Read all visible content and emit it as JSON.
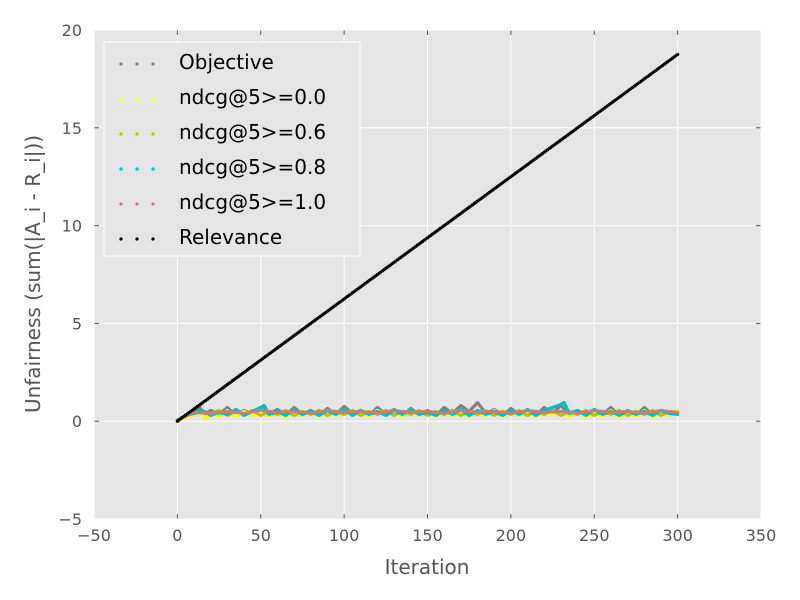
{
  "chart_data": {
    "type": "scatter",
    "title": "",
    "xlabel": "Iteration",
    "ylabel": "Unfairness (sum(|A_i - R_i|))",
    "xlim": [
      -50,
      350
    ],
    "ylim": [
      -5,
      20
    ],
    "xticks": [
      "−50",
      "0",
      "50",
      "100",
      "150",
      "200",
      "250",
      "300",
      "350"
    ],
    "xtick_values": [
      -50,
      0,
      50,
      100,
      150,
      200,
      250,
      300,
      350
    ],
    "yticks": [
      "−5",
      "0",
      "5",
      "10",
      "15",
      "20"
    ],
    "ytick_values": [
      -5,
      0,
      5,
      10,
      15,
      20
    ],
    "grid": true,
    "legend_position": "upper-left",
    "series": [
      {
        "name": "Objective",
        "color": "#808080",
        "x": [
          0,
          5,
          10,
          13,
          16,
          20,
          25,
          30,
          35,
          40,
          45,
          50,
          55,
          60,
          65,
          70,
          75,
          80,
          85,
          90,
          95,
          100,
          105,
          110,
          115,
          120,
          125,
          130,
          135,
          140,
          145,
          150,
          155,
          160,
          165,
          170,
          175,
          180,
          185,
          190,
          195,
          200,
          205,
          210,
          215,
          220,
          225,
          230,
          235,
          240,
          245,
          250,
          255,
          260,
          265,
          270,
          275,
          280,
          285,
          290,
          295,
          300
        ],
        "y": [
          0.05,
          0.25,
          0.45,
          0.75,
          0.35,
          0.55,
          0.35,
          0.7,
          0.3,
          0.55,
          0.35,
          0.65,
          0.4,
          0.6,
          0.3,
          0.7,
          0.35,
          0.55,
          0.3,
          0.65,
          0.35,
          0.75,
          0.4,
          0.55,
          0.3,
          0.7,
          0.35,
          0.6,
          0.3,
          0.65,
          0.35,
          0.55,
          0.3,
          0.7,
          0.4,
          0.8,
          0.5,
          0.95,
          0.4,
          0.6,
          0.3,
          0.65,
          0.35,
          0.55,
          0.3,
          0.7,
          0.4,
          0.8,
          0.35,
          0.55,
          0.3,
          0.6,
          0.35,
          0.7,
          0.3,
          0.5,
          0.3,
          0.7,
          0.35,
          0.5,
          0.3,
          0.55
        ]
      },
      {
        "name": "ndcg@5>=0.0",
        "color": "#ffff00",
        "x": [
          0,
          5,
          10,
          14,
          17,
          20,
          25,
          30,
          35,
          40,
          45,
          50,
          55,
          60,
          65,
          70,
          75,
          80,
          85,
          90,
          95,
          100,
          105,
          110,
          115,
          120,
          125,
          130,
          135,
          140,
          145,
          150,
          155,
          160,
          165,
          170,
          175,
          180,
          185,
          190,
          195,
          200,
          205,
          210,
          215,
          220,
          225,
          230,
          235,
          240,
          245,
          250,
          255,
          260,
          265,
          270,
          275,
          280,
          285,
          290,
          295,
          300
        ],
        "y": [
          0.05,
          0.2,
          0.35,
          0.5,
          0.1,
          0.4,
          0.25,
          0.55,
          0.25,
          0.5,
          0.3,
          0.6,
          0.25,
          0.45,
          0.2,
          0.55,
          0.3,
          0.5,
          0.25,
          0.55,
          0.3,
          0.6,
          0.3,
          0.5,
          0.25,
          0.55,
          0.3,
          0.55,
          0.25,
          0.6,
          0.3,
          0.45,
          0.25,
          0.5,
          0.3,
          0.55,
          0.25,
          0.5,
          0.3,
          0.55,
          0.25,
          0.5,
          0.3,
          0.55,
          0.25,
          0.5,
          0.35,
          0.55,
          0.25,
          0.5,
          0.2,
          0.45,
          0.25,
          0.55,
          0.2,
          0.45,
          0.25,
          0.55,
          0.2,
          0.5,
          0.3,
          0.55
        ]
      },
      {
        "name": "ndcg@5>=0.6",
        "color": "#bfbf00",
        "x": [
          0,
          5,
          10,
          15,
          20,
          25,
          30,
          35,
          40,
          45,
          50,
          55,
          60,
          65,
          70,
          75,
          80,
          85,
          90,
          95,
          100,
          105,
          110,
          115,
          120,
          125,
          130,
          135,
          140,
          145,
          150,
          155,
          160,
          165,
          170,
          175,
          180,
          185,
          190,
          195,
          200,
          205,
          210,
          215,
          220,
          225,
          230,
          235,
          240,
          245,
          250,
          255,
          260,
          265,
          270,
          275,
          280,
          285,
          290,
          295,
          300
        ],
        "y": [
          0.05,
          0.3,
          0.4,
          0.5,
          0.35,
          0.55,
          0.3,
          0.5,
          0.35,
          0.55,
          0.3,
          0.5,
          0.35,
          0.55,
          0.3,
          0.5,
          0.35,
          0.55,
          0.3,
          0.5,
          0.35,
          0.55,
          0.3,
          0.5,
          0.35,
          0.55,
          0.3,
          0.5,
          0.35,
          0.55,
          0.3,
          0.5,
          0.35,
          0.55,
          0.3,
          0.5,
          0.35,
          0.55,
          0.3,
          0.5,
          0.35,
          0.55,
          0.3,
          0.5,
          0.35,
          0.55,
          0.3,
          0.5,
          0.35,
          0.55,
          0.3,
          0.5,
          0.35,
          0.55,
          0.3,
          0.5,
          0.35,
          0.55,
          0.3,
          0.5,
          0.35
        ]
      },
      {
        "name": "ndcg@5>=0.8",
        "color": "#00bfbf",
        "x": [
          0,
          5,
          10,
          15,
          20,
          25,
          30,
          35,
          40,
          45,
          50,
          52,
          55,
          60,
          65,
          70,
          75,
          80,
          85,
          90,
          95,
          100,
          105,
          110,
          115,
          120,
          125,
          130,
          135,
          140,
          145,
          150,
          155,
          160,
          165,
          170,
          175,
          180,
          185,
          190,
          195,
          200,
          205,
          210,
          215,
          220,
          225,
          230,
          232,
          235,
          240,
          245,
          250,
          255,
          260,
          265,
          270,
          275,
          280,
          285,
          290,
          295,
          300
        ],
        "y": [
          0.05,
          0.3,
          0.4,
          0.55,
          0.3,
          0.45,
          0.35,
          0.6,
          0.3,
          0.5,
          0.7,
          0.8,
          0.35,
          0.5,
          0.3,
          0.6,
          0.35,
          0.5,
          0.3,
          0.55,
          0.35,
          0.6,
          0.3,
          0.55,
          0.35,
          0.5,
          0.3,
          0.55,
          0.35,
          0.6,
          0.35,
          0.45,
          0.3,
          0.55,
          0.35,
          0.6,
          0.3,
          0.55,
          0.35,
          0.5,
          0.3,
          0.55,
          0.35,
          0.6,
          0.3,
          0.55,
          0.7,
          0.85,
          0.95,
          0.4,
          0.55,
          0.3,
          0.6,
          0.35,
          0.5,
          0.3,
          0.55,
          0.35,
          0.5,
          0.3,
          0.55,
          0.4,
          0.35
        ]
      },
      {
        "name": "ndcg@5>=1.0",
        "color": "#bf8080",
        "x": [
          0,
          10,
          20,
          30,
          40,
          50,
          60,
          70,
          80,
          90,
          100,
          110,
          120,
          130,
          140,
          150,
          160,
          170,
          180,
          190,
          200,
          210,
          220,
          230,
          240,
          250,
          260,
          270,
          280,
          290,
          300
        ],
        "y": [
          0.05,
          0.45,
          0.4,
          0.5,
          0.4,
          0.55,
          0.45,
          0.5,
          0.4,
          0.55,
          0.45,
          0.5,
          0.4,
          0.55,
          0.45,
          0.5,
          0.4,
          0.55,
          0.45,
          0.5,
          0.4,
          0.55,
          0.45,
          0.5,
          0.4,
          0.55,
          0.45,
          0.5,
          0.4,
          0.55,
          0.45
        ]
      },
      {
        "name": "Relevance",
        "color": "#000000",
        "x": [
          0,
          300
        ],
        "y": [
          0.0,
          18.75
        ],
        "dense_line": true
      }
    ]
  }
}
